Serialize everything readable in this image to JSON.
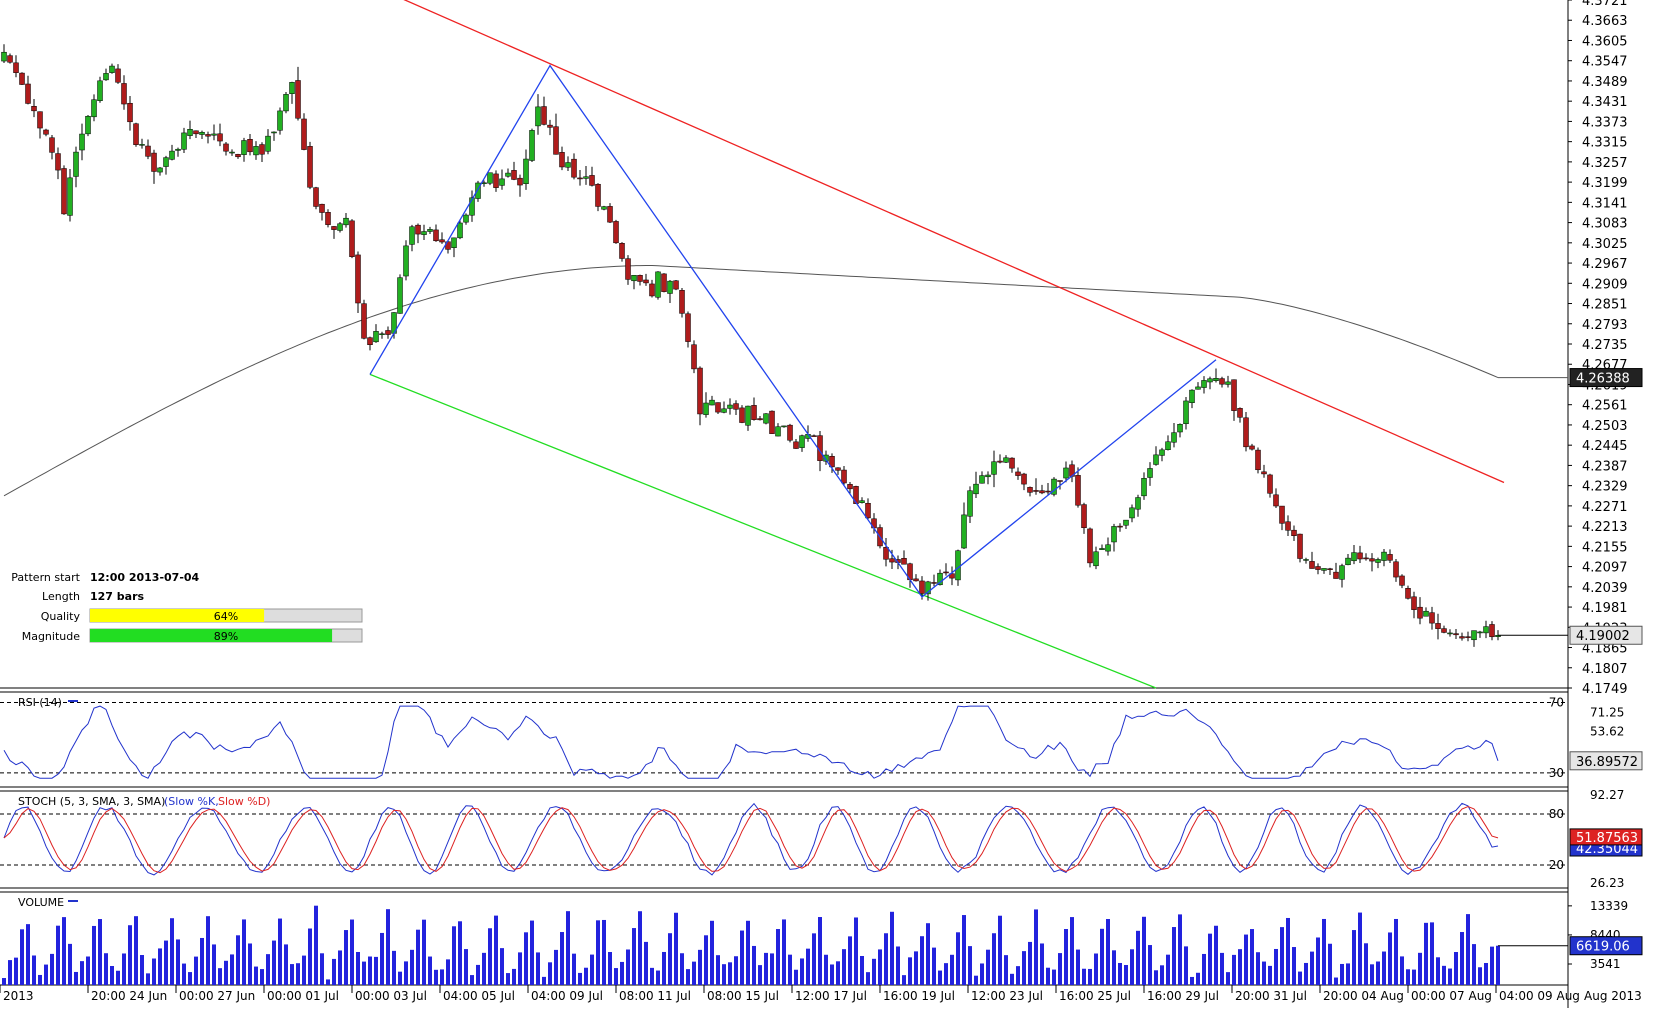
{
  "chart_data": {
    "type": "candlestick",
    "price_panel": {
      "price_axis_ticks": [
        "4.3721",
        "4.3663",
        "4.3605",
        "4.3547",
        "4.3489",
        "4.3431",
        "4.3373",
        "4.3315",
        "4.3257",
        "4.3199",
        "4.3141",
        "4.3083",
        "4.3025",
        "4.2967",
        "4.2909",
        "4.2851",
        "4.2793",
        "4.2735",
        "4.2677",
        "4.2619",
        "4.2561",
        "4.2503",
        "4.2445",
        "4.2387",
        "4.2329",
        "4.2271",
        "4.2213",
        "4.2155",
        "4.2097",
        "4.2039",
        "4.1981",
        "4.1923",
        "4.1865",
        "4.1807",
        "4.1749"
      ],
      "price_range": [
        4.1749,
        4.3721
      ],
      "last_price_label": "4.19002",
      "last_price": 4.19002,
      "sma_label": "4.26388",
      "sma_last": 4.26388,
      "colors": {
        "bull": "#22b022",
        "bear": "#b01c1c",
        "wick": "#000000",
        "sma": "#555555",
        "resistance": "#ee2222",
        "support": "#22dd22",
        "pattern": "#2244ee"
      },
      "pattern": {
        "start_label": "Pattern start",
        "start_value": "12:00 2013-07-04",
        "length_label": "Length",
        "length_value": "127 bars",
        "quality_label": "Quality",
        "quality_value": "64%",
        "quality": 0.64,
        "magnitude_label": "Magnitude",
        "magnitude_value": "89%",
        "magnitude": 0.89
      },
      "pattern_pivots": [
        {
          "bar": 61,
          "price": 4.2648
        },
        {
          "bar": 91,
          "price": 4.3533
        },
        {
          "bar": 153,
          "price": 4.201
        },
        {
          "bar": 202,
          "price": 4.269
        }
      ],
      "resistance_line": [
        {
          "bar": 61,
          "price": 4.3765
        },
        {
          "bar": 250,
          "price": 4.2338
        }
      ],
      "support_line": [
        {
          "bar": 61,
          "price": 4.2648
        },
        {
          "bar": 192,
          "price": 4.1749
        }
      ]
    },
    "rsi_panel": {
      "title": "RSI (14)",
      "ticks": [
        "70",
        "71.25",
        "53.62",
        "30"
      ],
      "levels": [
        70,
        30
      ],
      "range": [
        22,
        76
      ],
      "last_label": "36.89572",
      "last": 36.89572
    },
    "stoch_panel": {
      "title": "STOCH (5, 3, SMA, 3, SMA)",
      "legend_k": "(Slow %K,",
      "legend_d": "Slow %D)",
      "ticks": [
        "80",
        "92.27",
        "20",
        "26.23"
      ],
      "levels": [
        80,
        20
      ],
      "range": [
        0,
        100
      ],
      "last_d_label": "51.87563",
      "last_k_label": "42.35044",
      "last_d": 51.87563,
      "last_k": 42.35044
    },
    "volume_panel": {
      "title": "VOLUME",
      "ticks": [
        "13339",
        "8440",
        "3541"
      ],
      "range": [
        0,
        15000
      ],
      "last_label": "6619.06",
      "last": 6619.06
    },
    "time_axis": {
      "labels": [
        "2013",
        "20:00 24 Jun",
        "00:00 27 Jun",
        "00:00 01 Jul",
        "00:00 03 Jul",
        "04:00 05 Jul",
        "04:00 09 Jul",
        "08:00 11 Jul",
        "08:00 15 Jul",
        "12:00 17 Jul",
        "16:00 19 Jul",
        "12:00 23 Jul",
        "16:00 25 Jul",
        "16:00 29 Jul",
        "20:00 31 Jul",
        "20:00 04 Aug",
        "00:00 07 Aug",
        "04:00 09 Aug"
      ],
      "corner_label": "Aug 2013"
    },
    "anchors": [
      {
        "bar": 0,
        "price": 4.356
      },
      {
        "bar": 8,
        "price": 4.329
      },
      {
        "bar": 10,
        "price": 4.312
      },
      {
        "bar": 13,
        "price": 4.335
      },
      {
        "bar": 18,
        "price": 4.353
      },
      {
        "bar": 22,
        "price": 4.333
      },
      {
        "bar": 26,
        "price": 4.324
      },
      {
        "bar": 31,
        "price": 4.336
      },
      {
        "bar": 37,
        "price": 4.331
      },
      {
        "bar": 43,
        "price": 4.329
      },
      {
        "bar": 48,
        "price": 4.347
      },
      {
        "bar": 52,
        "price": 4.31
      },
      {
        "bar": 57,
        "price": 4.308
      },
      {
        "bar": 60,
        "price": 4.273
      },
      {
        "bar": 64,
        "price": 4.276
      },
      {
        "bar": 68,
        "price": 4.308
      },
      {
        "bar": 74,
        "price": 4.303
      },
      {
        "bar": 80,
        "price": 4.322
      },
      {
        "bar": 86,
        "price": 4.32
      },
      {
        "bar": 89,
        "price": 4.341
      },
      {
        "bar": 93,
        "price": 4.326
      },
      {
        "bar": 98,
        "price": 4.32
      },
      {
        "bar": 103,
        "price": 4.297
      },
      {
        "bar": 107,
        "price": 4.29
      },
      {
        "bar": 112,
        "price": 4.291
      },
      {
        "bar": 116,
        "price": 4.256
      },
      {
        "bar": 122,
        "price": 4.254
      },
      {
        "bar": 129,
        "price": 4.249
      },
      {
        "bar": 137,
        "price": 4.243
      },
      {
        "bar": 143,
        "price": 4.226
      },
      {
        "bar": 147,
        "price": 4.213
      },
      {
        "bar": 153,
        "price": 4.205
      },
      {
        "bar": 158,
        "price": 4.207
      },
      {
        "bar": 161,
        "price": 4.233
      },
      {
        "bar": 166,
        "price": 4.241
      },
      {
        "bar": 172,
        "price": 4.231
      },
      {
        "bar": 178,
        "price": 4.237
      },
      {
        "bar": 181,
        "price": 4.209
      },
      {
        "bar": 186,
        "price": 4.222
      },
      {
        "bar": 193,
        "price": 4.243
      },
      {
        "bar": 199,
        "price": 4.262
      },
      {
        "bar": 204,
        "price": 4.261
      },
      {
        "bar": 209,
        "price": 4.238
      },
      {
        "bar": 214,
        "price": 4.218
      },
      {
        "bar": 219,
        "price": 4.208
      },
      {
        "bar": 224,
        "price": 4.211
      },
      {
        "bar": 230,
        "price": 4.213
      },
      {
        "bar": 235,
        "price": 4.196
      },
      {
        "bar": 241,
        "price": 4.19
      },
      {
        "bar": 248,
        "price": 4.1905
      }
    ]
  }
}
